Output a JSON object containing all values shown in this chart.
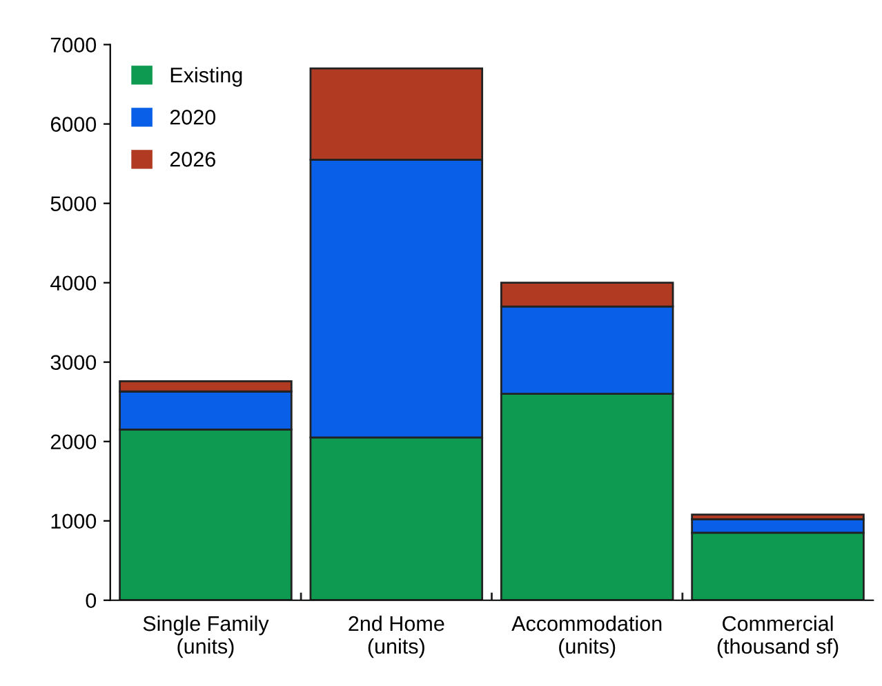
{
  "chart_data": {
    "type": "bar",
    "stacked": true,
    "categories": [
      "Single Family\n(units)",
      "2nd Home\n(units)",
      "Accommodation\n(units)",
      "Commercial\n(thousand sf)"
    ],
    "series": [
      {
        "name": "Existing",
        "color": "#0e9a50",
        "values": [
          2150,
          2050,
          2600,
          850
        ]
      },
      {
        "name": "2020",
        "color": "#0a5fe8",
        "values": [
          480,
          3500,
          1100,
          170
        ]
      },
      {
        "name": "2026",
        "color": "#b03a22",
        "values": [
          130,
          1150,
          300,
          60
        ]
      }
    ],
    "ylim": [
      0,
      7000
    ],
    "yticks": [
      0,
      1000,
      2000,
      3000,
      4000,
      5000,
      6000,
      7000
    ],
    "grid": false,
    "legend": "top left"
  }
}
